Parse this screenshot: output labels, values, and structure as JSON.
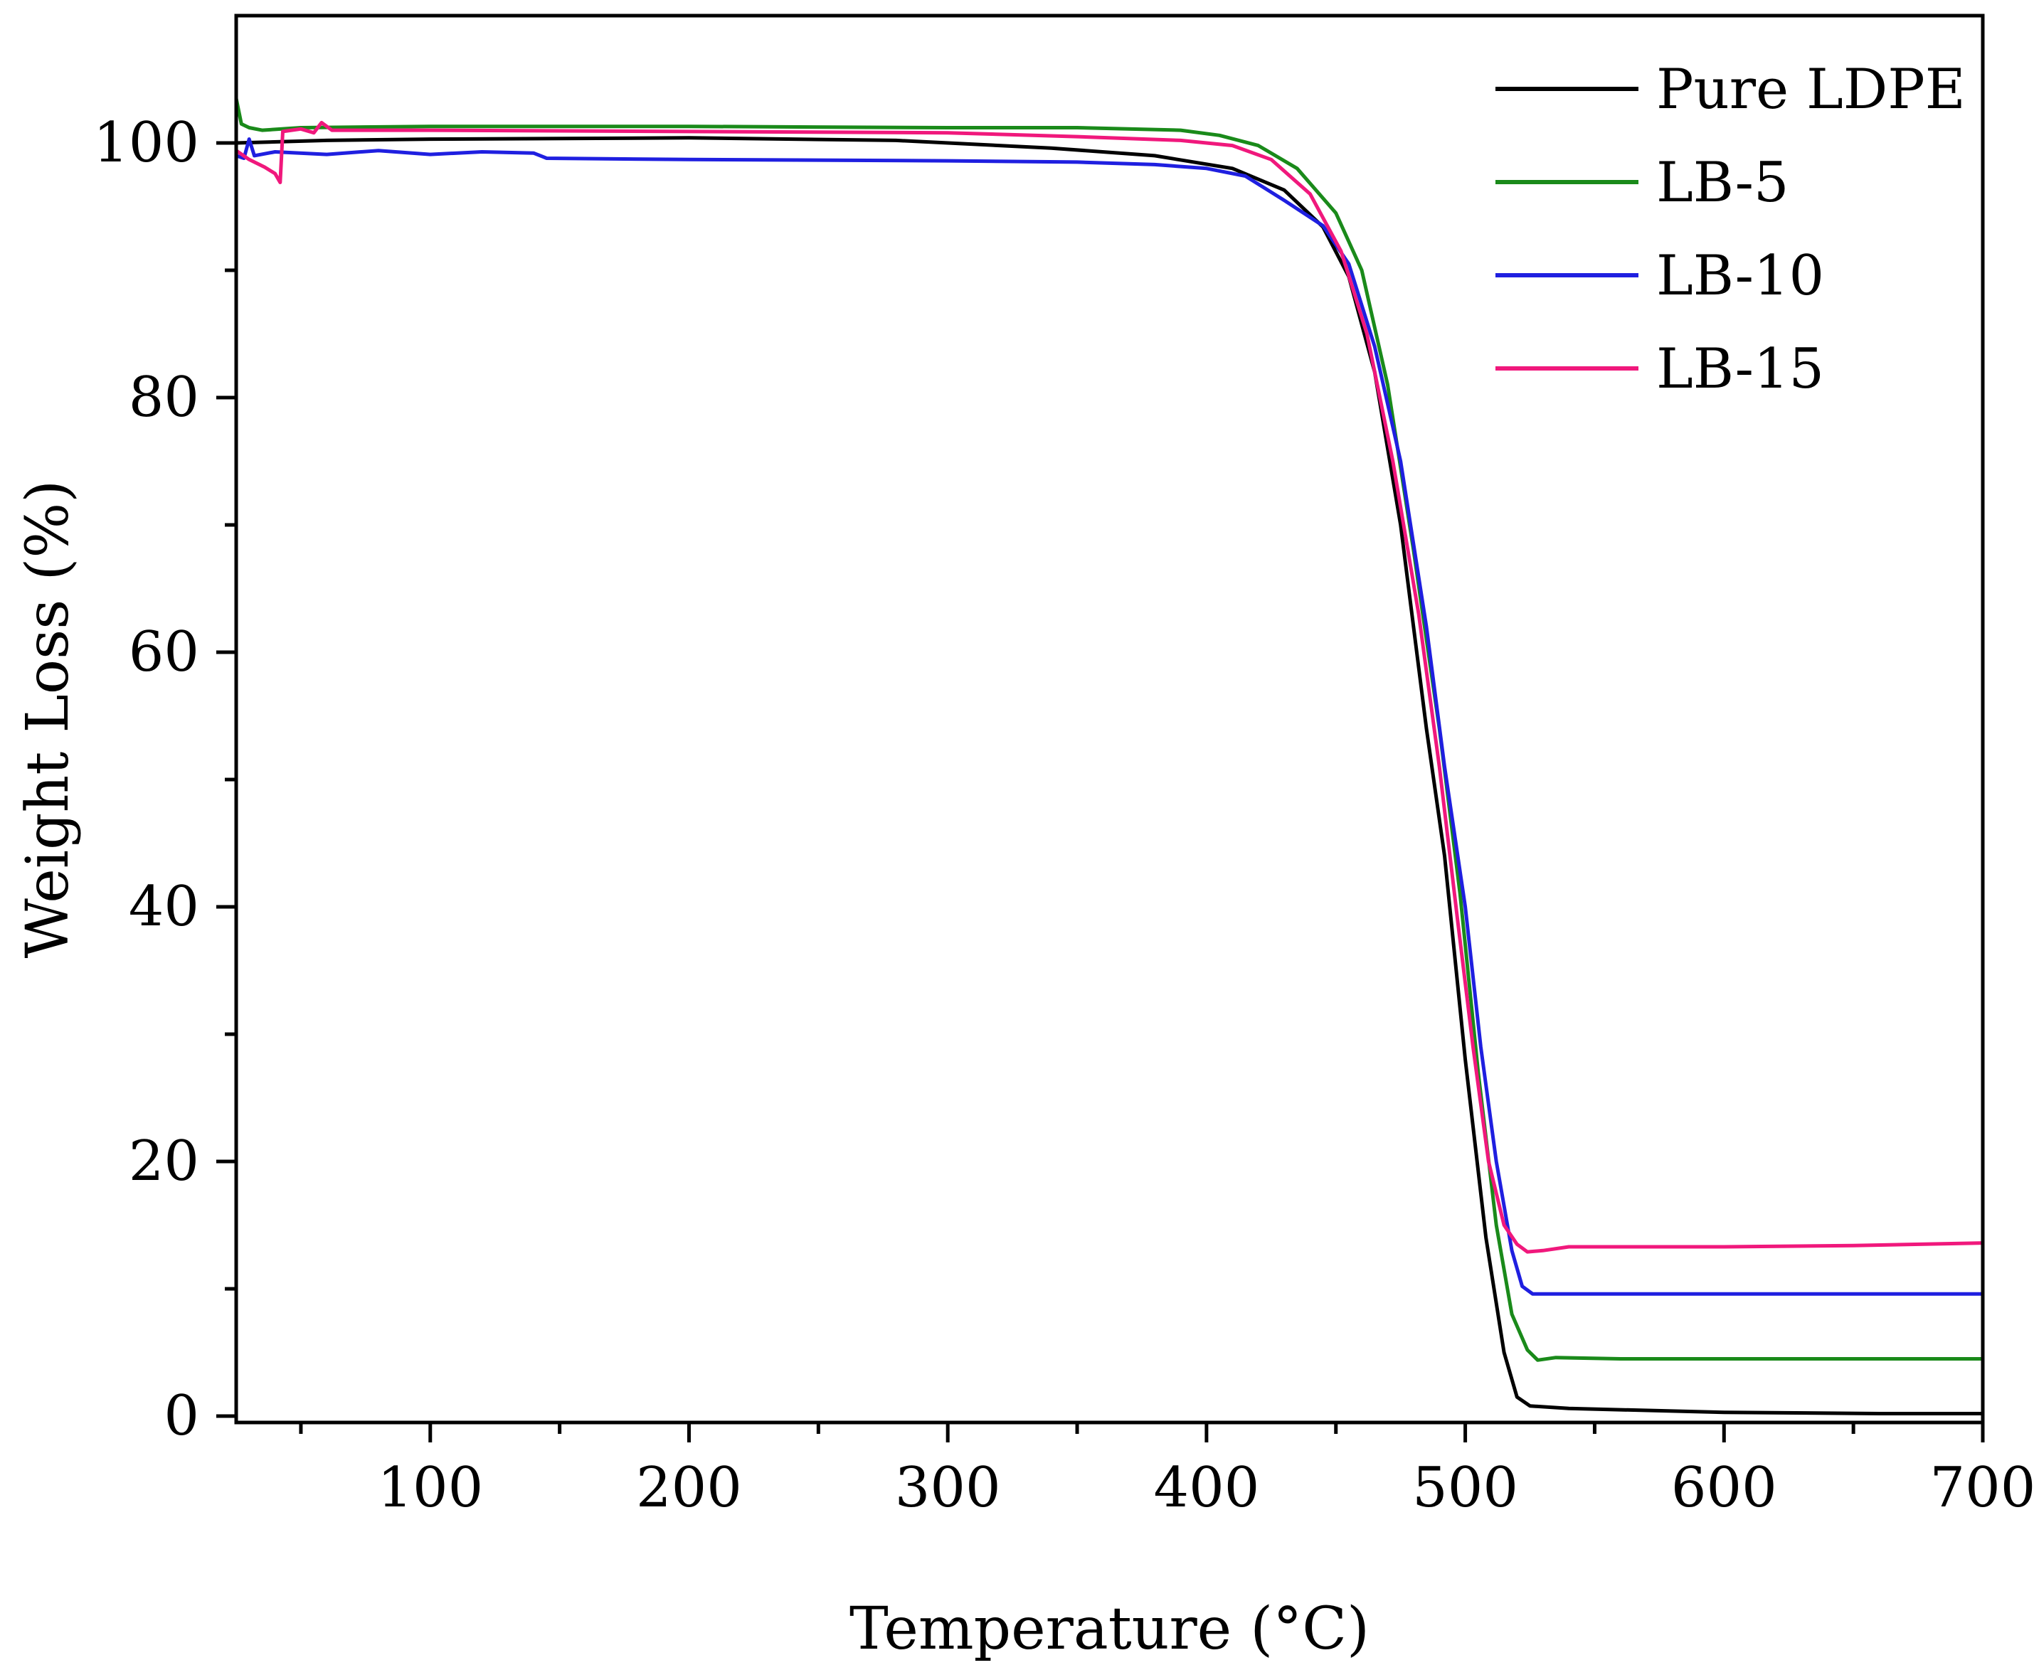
{
  "chart_data": {
    "type": "line",
    "title": "",
    "xlabel": "Temperature (°C)",
    "ylabel": "Weight Loss (%)",
    "xlim": [
      25,
      700
    ],
    "ylim": [
      -0.5,
      110
    ],
    "x_ticks": [
      100,
      200,
      300,
      400,
      500,
      600,
      700
    ],
    "x_minor_ticks": [
      50,
      150,
      250,
      350,
      450,
      550,
      650
    ],
    "y_ticks": [
      0,
      20,
      40,
      60,
      80,
      100
    ],
    "y_minor_ticks": [
      10,
      30,
      50,
      70,
      90
    ],
    "grid": false,
    "legend_position": "top-right",
    "series": [
      {
        "name": "Pure LDPE",
        "color": "#000000",
        "points": [
          [
            25,
            100
          ],
          [
            60,
            100.2
          ],
          [
            100,
            100.3
          ],
          [
            200,
            100.4
          ],
          [
            280,
            100.2
          ],
          [
            340,
            99.6
          ],
          [
            380,
            99
          ],
          [
            410,
            98
          ],
          [
            430,
            96.3
          ],
          [
            445,
            93.4
          ],
          [
            455,
            89.5
          ],
          [
            465,
            82
          ],
          [
            475,
            70
          ],
          [
            485,
            54
          ],
          [
            492,
            44
          ],
          [
            500,
            28
          ],
          [
            508,
            14
          ],
          [
            515,
            5
          ],
          [
            520,
            1.5
          ],
          [
            525,
            0.8
          ],
          [
            540,
            0.6
          ],
          [
            600,
            0.3
          ],
          [
            660,
            0.2
          ],
          [
            700,
            0.2
          ]
        ]
      },
      {
        "name": "LB-5",
        "color": "#1a8a1a",
        "points": [
          [
            25,
            103.5
          ],
          [
            27,
            101.5
          ],
          [
            30,
            101.2
          ],
          [
            35,
            101
          ],
          [
            50,
            101.2
          ],
          [
            100,
            101.3
          ],
          [
            200,
            101.3
          ],
          [
            300,
            101.2
          ],
          [
            350,
            101.2
          ],
          [
            390,
            101
          ],
          [
            405,
            100.6
          ],
          [
            420,
            99.8
          ],
          [
            435,
            98
          ],
          [
            450,
            94.5
          ],
          [
            460,
            90
          ],
          [
            470,
            81
          ],
          [
            480,
            68
          ],
          [
            490,
            54
          ],
          [
            498,
            41
          ],
          [
            505,
            27
          ],
          [
            512,
            15
          ],
          [
            518,
            8
          ],
          [
            524,
            5.2
          ],
          [
            528,
            4.4
          ],
          [
            535,
            4.6
          ],
          [
            560,
            4.5
          ],
          [
            700,
            4.5
          ]
        ]
      },
      {
        "name": "LB-10",
        "color": "#1f1fe0",
        "points": [
          [
            25,
            99
          ],
          [
            28,
            98.8
          ],
          [
            30,
            100.3
          ],
          [
            32,
            99
          ],
          [
            40,
            99.3
          ],
          [
            60,
            99.1
          ],
          [
            80,
            99.4
          ],
          [
            100,
            99.1
          ],
          [
            120,
            99.3
          ],
          [
            140,
            99.2
          ],
          [
            145,
            98.8
          ],
          [
            200,
            98.7
          ],
          [
            300,
            98.6
          ],
          [
            350,
            98.5
          ],
          [
            380,
            98.3
          ],
          [
            400,
            98
          ],
          [
            415,
            97.4
          ],
          [
            430,
            95.5
          ],
          [
            445,
            93.5
          ],
          [
            455,
            90.5
          ],
          [
            465,
            84
          ],
          [
            475,
            75
          ],
          [
            485,
            62
          ],
          [
            492,
            51
          ],
          [
            500,
            40
          ],
          [
            506,
            29
          ],
          [
            512,
            20
          ],
          [
            518,
            13
          ],
          [
            522,
            10.2
          ],
          [
            526,
            9.6
          ],
          [
            540,
            9.6
          ],
          [
            700,
            9.6
          ]
        ]
      },
      {
        "name": "LB-15",
        "color": "#f0187c",
        "points": [
          [
            25,
            99.4
          ],
          [
            30,
            98.7
          ],
          [
            36,
            98.1
          ],
          [
            40,
            97.6
          ],
          [
            42,
            96.9
          ],
          [
            43,
            100.9
          ],
          [
            50,
            101.1
          ],
          [
            55,
            100.8
          ],
          [
            58,
            101.6
          ],
          [
            62,
            101
          ],
          [
            100,
            101
          ],
          [
            200,
            100.9
          ],
          [
            300,
            100.8
          ],
          [
            350,
            100.5
          ],
          [
            390,
            100.2
          ],
          [
            410,
            99.8
          ],
          [
            425,
            98.7
          ],
          [
            440,
            96
          ],
          [
            452,
            91.5
          ],
          [
            462,
            85
          ],
          [
            472,
            75
          ],
          [
            482,
            63
          ],
          [
            490,
            51
          ],
          [
            497,
            39
          ],
          [
            503,
            29
          ],
          [
            509,
            20
          ],
          [
            515,
            15
          ],
          [
            520,
            13.5
          ],
          [
            524,
            12.9
          ],
          [
            530,
            13
          ],
          [
            540,
            13.3
          ],
          [
            600,
            13.3
          ],
          [
            650,
            13.4
          ],
          [
            700,
            13.6
          ]
        ]
      }
    ]
  }
}
